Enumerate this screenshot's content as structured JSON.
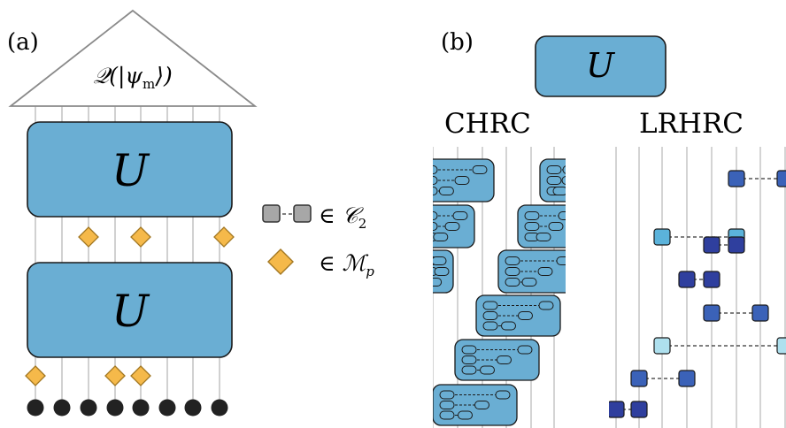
{
  "panel_a": {
    "label": "(a)",
    "measurement": "𝒬(|ψ",
    "measurement_sub": "m",
    "measurement_end": "⟩)",
    "top_block": "U",
    "bottom_block": "U",
    "colors": {
      "block": "#6aaed3",
      "diamond": "#f5b94a",
      "qubit": "#222222",
      "wire": "#b8b8b8"
    }
  },
  "legend": {
    "gate_symbol": "∈ 𝒞",
    "gate_sub": "2",
    "diamond_symbol": "∈ ℳ",
    "diamond_sub": "p"
  },
  "panel_b": {
    "label": "(b)",
    "unitary": "U",
    "left_title": "CHRC",
    "right_title": "LRHRC",
    "colors": {
      "dark": "#2f3f9e",
      "mid": "#3b62b8",
      "light": "#5bb3db",
      "pale": "#aee0ee"
    }
  }
}
